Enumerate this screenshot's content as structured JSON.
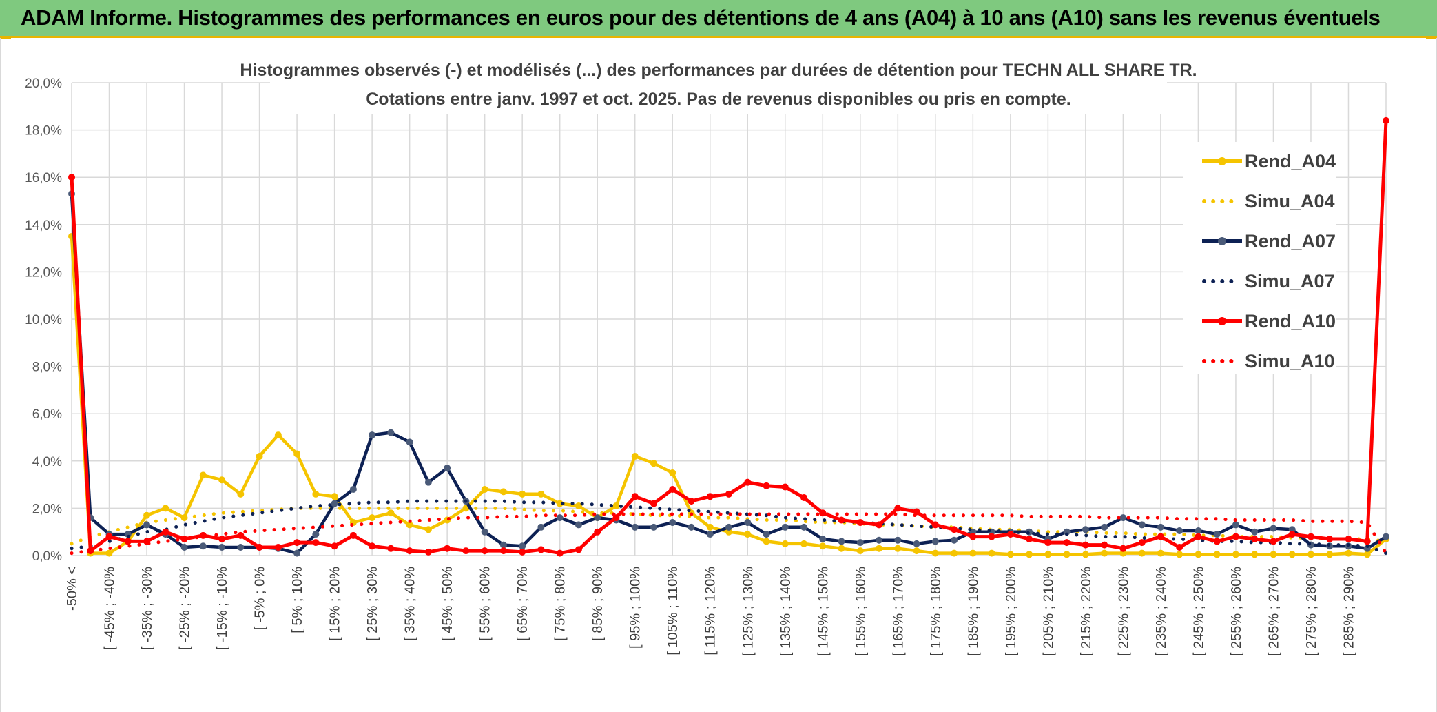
{
  "header": {
    "title": "ADAM Informe. Histogrammes des performances en euros pour des détentions de 4 ans (A04) à 10 ans (A10) sans les revenus éventuels"
  },
  "chart_data": {
    "type": "line",
    "title": "Histogrammes observés (-) et modélisés (...) des performances par durées de détention pour TECHN ALL SHARE TR.",
    "subtitle": "Cotations entre janv. 1997 et oct. 2025. Pas de revenus disponibles ou pris en compte.",
    "xlabel": "",
    "ylabel": "",
    "ylim": [
      0,
      20
    ],
    "y_ticks": [
      "0,0%",
      "2,0%",
      "4,0%",
      "6,0%",
      "8,0%",
      "10,0%",
      "12,0%",
      "14,0%",
      "16,0%",
      "18,0%",
      "20,0%"
    ],
    "grid": true,
    "legend_position": "right",
    "x_tick_labels": [
      "-50% <",
      "[ -45% ; -40%",
      "[ -35% ; -30%",
      "[ -25% ; -20%",
      "[ -15% ; -10%",
      "[ -5% ; 0%",
      "[ 5% ; 10%",
      "[ 15% ; 20%",
      "[ 25% ; 30%",
      "[ 35% ; 40%",
      "[ 45% ; 50%",
      "[ 55% ; 60%",
      "[ 65% ; 70%",
      "[ 75% ; 80%",
      "[ 85% ; 90%",
      "[ 95% ; 100%",
      "[ 105% ; 110%",
      "[ 115% ; 120%",
      "[ 125% ; 130%",
      "[ 135% ; 140%",
      "[ 145% ; 150%",
      "[ 155% ; 160%",
      "[ 165% ; 170%",
      "[ 175% ; 180%",
      "[ 185% ; 190%",
      "[ 195% ; 200%",
      "[ 205% ; 210%",
      "[ 215% ; 220%",
      "[ 225% ; 230%",
      "[ 235% ; 240%",
      "[ 245% ; 250%",
      "[ 255% ; 260%",
      "[ 265% ; 270%",
      "[ 275% ; 280%",
      "[ 285% ; 290%"
    ],
    "n_categories": 71,
    "series": [
      {
        "name": "Rend_A04",
        "style": "solid",
        "color": "#f5c400",
        "values": [
          13.5,
          0.1,
          0.1,
          0.6,
          1.7,
          2.0,
          1.6,
          3.4,
          3.2,
          2.6,
          4.2,
          5.1,
          4.3,
          2.6,
          2.5,
          1.4,
          1.6,
          1.8,
          1.3,
          1.1,
          1.5,
          2.0,
          2.8,
          2.7,
          2.6,
          2.6,
          2.2,
          2.1,
          1.6,
          2.1,
          4.2,
          3.9,
          3.5,
          1.8,
          1.2,
          1.0,
          0.9,
          0.6,
          0.5,
          0.5,
          0.4,
          0.3,
          0.2,
          0.3,
          0.3,
          0.2,
          0.1,
          0.1,
          0.1,
          0.1,
          0.05,
          0.05,
          0.05,
          0.05,
          0.05,
          0.1,
          0.1,
          0.1,
          0.1,
          0.05,
          0.05,
          0.05,
          0.05,
          0.05,
          0.05,
          0.05,
          0.05,
          0.05,
          0.1,
          0.05,
          0.7
        ]
      },
      {
        "name": "Simu_A04",
        "style": "dotted",
        "color": "#f5c400",
        "values": [
          0.5,
          0.8,
          1.0,
          1.2,
          1.4,
          1.5,
          1.6,
          1.7,
          1.8,
          1.85,
          1.9,
          1.95,
          2.0,
          2.0,
          2.0,
          2.0,
          2.0,
          2.0,
          2.0,
          2.0,
          2.0,
          2.0,
          2.0,
          2.0,
          1.95,
          1.9,
          1.9,
          1.85,
          1.8,
          1.8,
          1.75,
          1.7,
          1.7,
          1.65,
          1.6,
          1.6,
          1.55,
          1.5,
          1.5,
          1.45,
          1.4,
          1.4,
          1.35,
          1.3,
          1.3,
          1.25,
          1.2,
          1.2,
          1.15,
          1.1,
          1.1,
          1.05,
          1.0,
          1.0,
          1.0,
          0.95,
          0.95,
          0.9,
          0.9,
          0.9,
          0.85,
          0.85,
          0.8,
          0.8,
          0.8,
          0.75,
          0.75,
          0.7,
          0.7,
          0.7,
          0.6
        ]
      },
      {
        "name": "Rend_A07",
        "style": "solid",
        "color": "#0d2154",
        "values": [
          15.3,
          1.6,
          0.9,
          0.9,
          1.3,
          0.9,
          0.35,
          0.4,
          0.35,
          0.35,
          0.35,
          0.3,
          0.1,
          0.9,
          2.2,
          2.8,
          5.1,
          5.2,
          4.8,
          3.1,
          3.7,
          2.3,
          1.0,
          0.45,
          0.4,
          1.2,
          1.6,
          1.3,
          1.6,
          1.5,
          1.2,
          1.2,
          1.4,
          1.2,
          0.9,
          1.2,
          1.4,
          0.9,
          1.2,
          1.2,
          0.7,
          0.6,
          0.55,
          0.65,
          0.65,
          0.5,
          0.6,
          0.65,
          1.0,
          1.0,
          1.0,
          1.0,
          0.7,
          1.0,
          1.1,
          1.2,
          1.6,
          1.3,
          1.2,
          1.05,
          1.05,
          0.9,
          1.3,
          1.0,
          1.15,
          1.1,
          0.45,
          0.4,
          0.4,
          0.3,
          0.8
        ]
      },
      {
        "name": "Simu_A07",
        "style": "dotted",
        "color": "#0d2154",
        "values": [
          0.3,
          0.4,
          0.6,
          0.8,
          1.0,
          1.1,
          1.3,
          1.45,
          1.6,
          1.7,
          1.8,
          1.9,
          2.0,
          2.1,
          2.15,
          2.2,
          2.25,
          2.25,
          2.3,
          2.3,
          2.3,
          2.3,
          2.3,
          2.3,
          2.25,
          2.25,
          2.2,
          2.2,
          2.15,
          2.1,
          2.05,
          2.0,
          1.95,
          1.9,
          1.85,
          1.8,
          1.75,
          1.7,
          1.6,
          1.55,
          1.5,
          1.45,
          1.4,
          1.35,
          1.3,
          1.25,
          1.2,
          1.15,
          1.1,
          1.05,
          1.0,
          0.95,
          0.9,
          0.9,
          0.85,
          0.8,
          0.8,
          0.75,
          0.7,
          0.7,
          0.65,
          0.6,
          0.6,
          0.55,
          0.55,
          0.5,
          0.5,
          0.45,
          0.45,
          0.4,
          0.1
        ]
      },
      {
        "name": "Rend_A10",
        "style": "solid",
        "color": "#ff0000",
        "values": [
          16.0,
          0.2,
          0.8,
          0.6,
          0.6,
          1.0,
          0.7,
          0.85,
          0.7,
          0.85,
          0.35,
          0.35,
          0.55,
          0.55,
          0.4,
          0.85,
          0.4,
          0.3,
          0.2,
          0.15,
          0.3,
          0.2,
          0.2,
          0.2,
          0.15,
          0.25,
          0.1,
          0.25,
          1.0,
          1.6,
          2.5,
          2.2,
          2.8,
          2.3,
          2.5,
          2.6,
          3.1,
          2.95,
          2.9,
          2.45,
          1.8,
          1.5,
          1.4,
          1.3,
          2.0,
          1.85,
          1.3,
          1.1,
          0.8,
          0.8,
          0.9,
          0.7,
          0.55,
          0.55,
          0.45,
          0.45,
          0.3,
          0.55,
          0.8,
          0.35,
          0.8,
          0.6,
          0.8,
          0.7,
          0.6,
          0.9,
          0.8,
          0.7,
          0.7,
          0.6,
          18.4
        ]
      },
      {
        "name": "Simu_A10",
        "style": "dotted",
        "color": "#ff0000",
        "values": [
          0.1,
          0.2,
          0.3,
          0.4,
          0.5,
          0.6,
          0.7,
          0.8,
          0.9,
          1.0,
          1.05,
          1.1,
          1.15,
          1.2,
          1.25,
          1.3,
          1.35,
          1.4,
          1.45,
          1.5,
          1.55,
          1.6,
          1.6,
          1.65,
          1.65,
          1.7,
          1.7,
          1.7,
          1.75,
          1.75,
          1.75,
          1.75,
          1.75,
          1.75,
          1.75,
          1.75,
          1.75,
          1.75,
          1.75,
          1.75,
          1.75,
          1.75,
          1.75,
          1.75,
          1.75,
          1.7,
          1.7,
          1.7,
          1.7,
          1.7,
          1.7,
          1.65,
          1.65,
          1.65,
          1.65,
          1.6,
          1.6,
          1.6,
          1.6,
          1.55,
          1.55,
          1.55,
          1.5,
          1.5,
          1.5,
          1.5,
          1.45,
          1.45,
          1.45,
          1.4,
          0.1
        ]
      }
    ]
  }
}
